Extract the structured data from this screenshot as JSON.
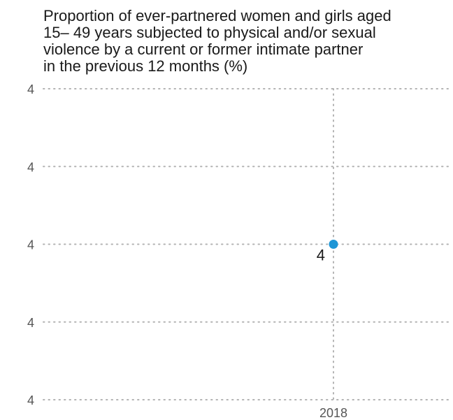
{
  "chart_data": {
    "type": "scatter",
    "title_lines": [
      "Proportion of ever-partnered women and girls aged",
      "15– 49 years subjected to physical and/or sexual",
      "violence by a current or former intimate partner",
      "in the previous 12 months (%)"
    ],
    "x_tick_labels": [
      "2018"
    ],
    "y_tick_labels": [
      "4",
      "4",
      "4",
      "4",
      "4"
    ],
    "series": [
      {
        "points": [
          {
            "x": "2018",
            "y": 4,
            "label": "4"
          }
        ],
        "color": "#1e96d6"
      }
    ],
    "grid": true,
    "grid_style": "dotted",
    "grid_color": "#b3b3b3",
    "text_color": "#555555"
  }
}
